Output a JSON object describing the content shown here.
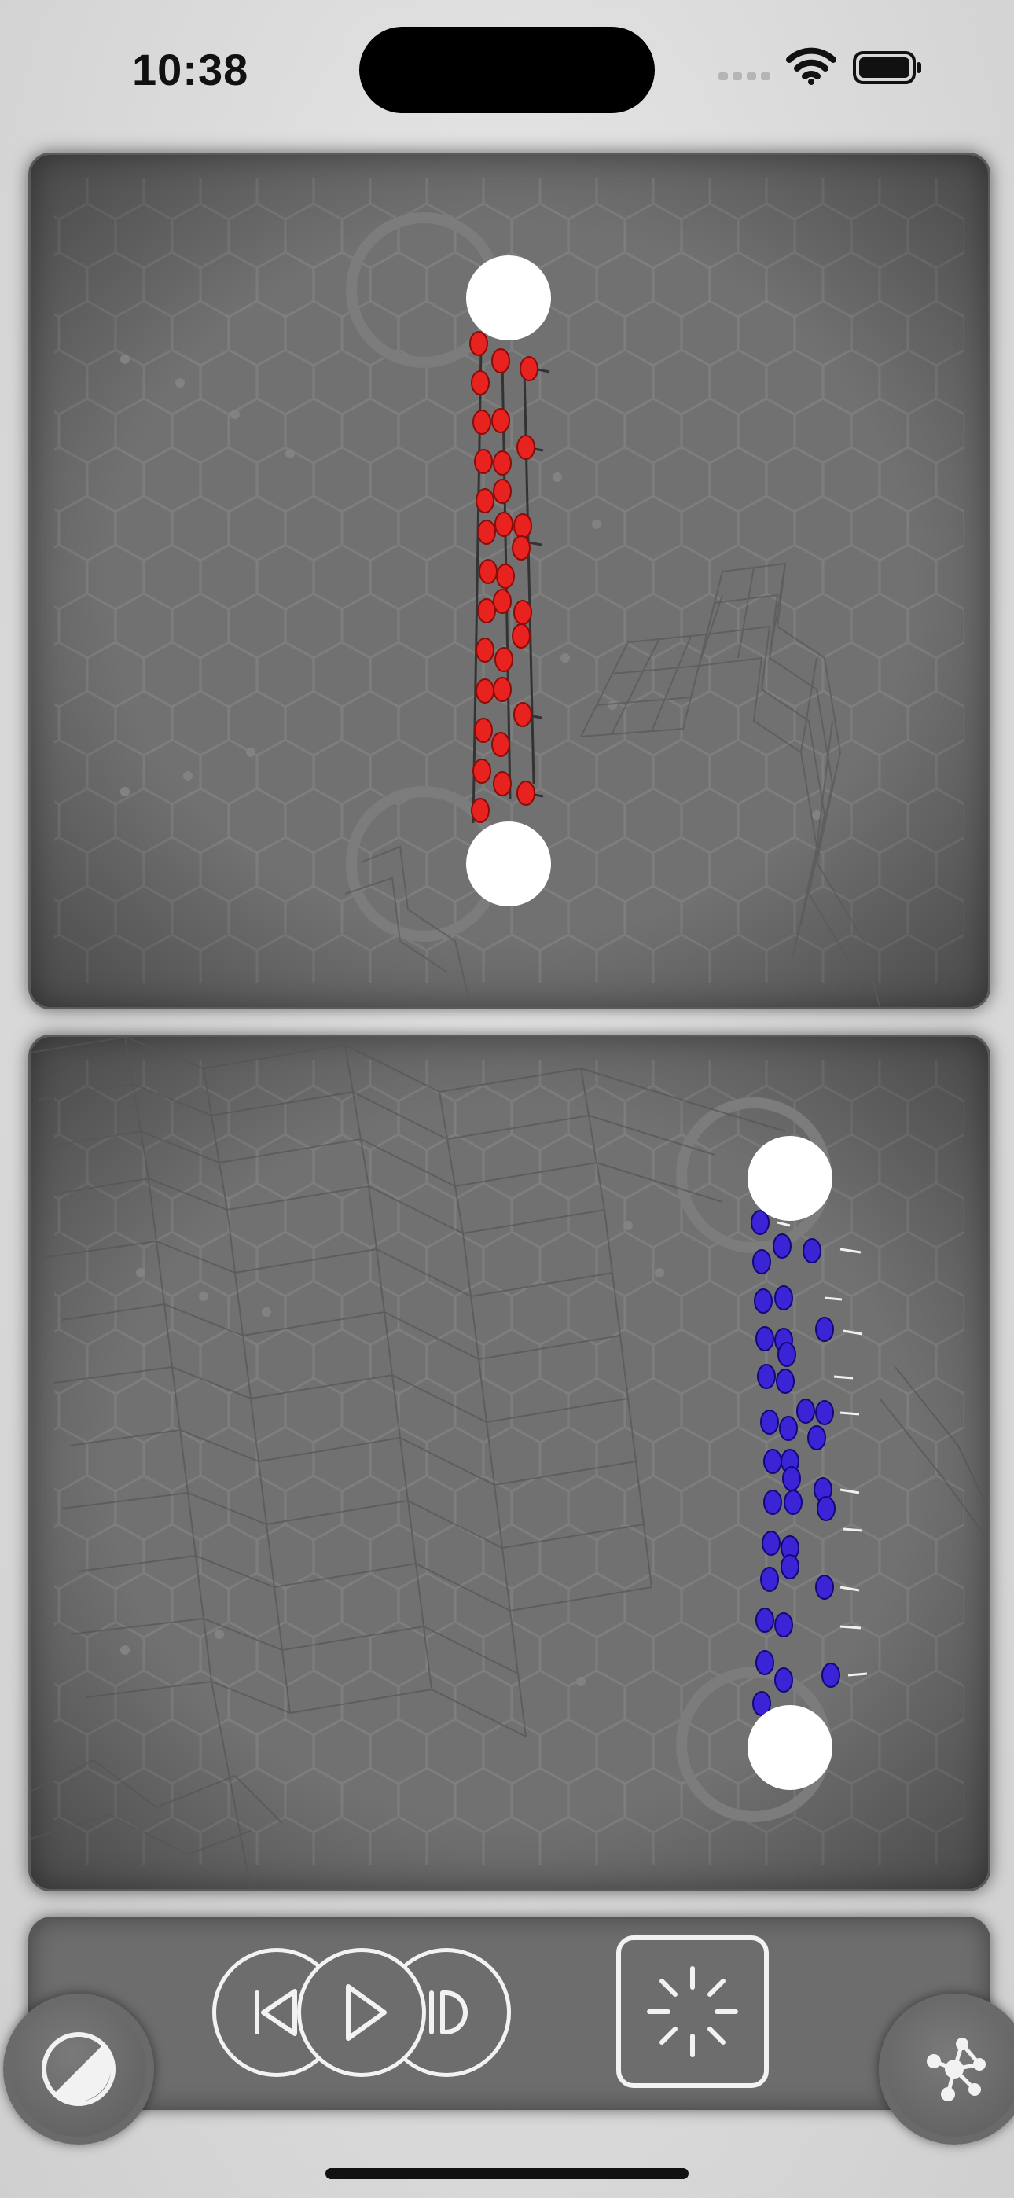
{
  "status_bar": {
    "time": "10:38",
    "icons": [
      "cellular-signal-icon",
      "wifi-icon",
      "battery-icon"
    ]
  },
  "simulation": {
    "top_panel": {
      "team_color": "#e8231f",
      "anchor_color": "#ffffff"
    },
    "bottom_panel": {
      "team_color": "#3a24d6",
      "anchor_color": "#ffffff"
    }
  },
  "controls": {
    "left_button_icon": "contrast-icon",
    "transport_icons": [
      "step-back-icon",
      "play-icon",
      "step-forward-icon"
    ],
    "reset_icon": "burst-icon",
    "right_button_icon": "network-icon"
  },
  "colors": {
    "panel": "#717171",
    "background": "#dcdcdc",
    "control_stroke": "#f2f2f2"
  }
}
